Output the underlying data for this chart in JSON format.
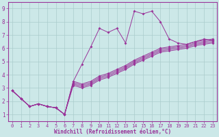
{
  "bg_color": "#cce8e8",
  "plot_bg_color": "#cce8e8",
  "line_color": "#993399",
  "grid_color": "#aacccc",
  "spine_color": "#993399",
  "xlabel": "Windchill (Refroidissement éolien,°C)",
  "xlim": [
    -0.5,
    23.5
  ],
  "ylim": [
    0.5,
    9.5
  ],
  "xticks": [
    0,
    1,
    2,
    3,
    4,
    5,
    6,
    7,
    8,
    9,
    10,
    11,
    12,
    13,
    14,
    15,
    16,
    17,
    18,
    19,
    20,
    21,
    22,
    23
  ],
  "yticks": [
    1,
    2,
    3,
    4,
    5,
    6,
    7,
    8,
    9
  ],
  "figsize": [
    3.2,
    2.0
  ],
  "dpi": 100,
  "series": [
    {
      "x": [
        0,
        1,
        2,
        3,
        4,
        5,
        6,
        7,
        8,
        9,
        10,
        11,
        12,
        13,
        14,
        15,
        16,
        17,
        18,
        19,
        20,
        21,
        22,
        23
      ],
      "y": [
        2.8,
        2.2,
        1.6,
        1.8,
        1.6,
        1.5,
        1.0,
        3.5,
        4.8,
        6.1,
        7.5,
        7.2,
        7.5,
        6.4,
        8.8,
        8.6,
        8.8,
        8.0,
        6.7,
        6.4,
        6.3,
        6.5,
        6.7,
        6.6
      ]
    },
    {
      "x": [
        0,
        1,
        2,
        3,
        4,
        5,
        6,
        7,
        8,
        9,
        10,
        11,
        12,
        13,
        14,
        15,
        16,
        17,
        18,
        19,
        20,
        21,
        22,
        23
      ],
      "y": [
        2.8,
        2.2,
        1.6,
        1.8,
        1.6,
        1.5,
        1.0,
        3.5,
        3.3,
        3.5,
        3.9,
        4.1,
        4.4,
        4.7,
        5.1,
        5.4,
        5.7,
        6.0,
        6.1,
        6.2,
        6.3,
        6.5,
        6.6,
        6.7
      ]
    },
    {
      "x": [
        0,
        1,
        2,
        3,
        4,
        5,
        6,
        7,
        8,
        9,
        10,
        11,
        12,
        13,
        14,
        15,
        16,
        17,
        18,
        19,
        20,
        21,
        22,
        23
      ],
      "y": [
        2.8,
        2.2,
        1.6,
        1.8,
        1.6,
        1.5,
        1.0,
        3.4,
        3.2,
        3.4,
        3.8,
        4.0,
        4.3,
        4.6,
        5.0,
        5.3,
        5.6,
        5.9,
        6.0,
        6.1,
        6.2,
        6.4,
        6.5,
        6.6
      ]
    },
    {
      "x": [
        0,
        1,
        2,
        3,
        4,
        5,
        6,
        7,
        8,
        9,
        10,
        11,
        12,
        13,
        14,
        15,
        16,
        17,
        18,
        19,
        20,
        21,
        22,
        23
      ],
      "y": [
        2.8,
        2.2,
        1.6,
        1.8,
        1.6,
        1.5,
        1.0,
        3.3,
        3.1,
        3.3,
        3.7,
        3.9,
        4.2,
        4.5,
        4.9,
        5.2,
        5.5,
        5.8,
        5.9,
        6.0,
        6.1,
        6.3,
        6.4,
        6.5
      ]
    },
    {
      "x": [
        0,
        1,
        2,
        3,
        4,
        5,
        6,
        7,
        8,
        9,
        10,
        11,
        12,
        13,
        14,
        15,
        16,
        17,
        18,
        19,
        20,
        21,
        22,
        23
      ],
      "y": [
        2.8,
        2.2,
        1.6,
        1.8,
        1.6,
        1.5,
        1.0,
        3.2,
        3.0,
        3.2,
        3.6,
        3.8,
        4.1,
        4.4,
        4.8,
        5.1,
        5.4,
        5.7,
        5.8,
        5.9,
        6.0,
        6.2,
        6.3,
        6.4
      ]
    }
  ]
}
